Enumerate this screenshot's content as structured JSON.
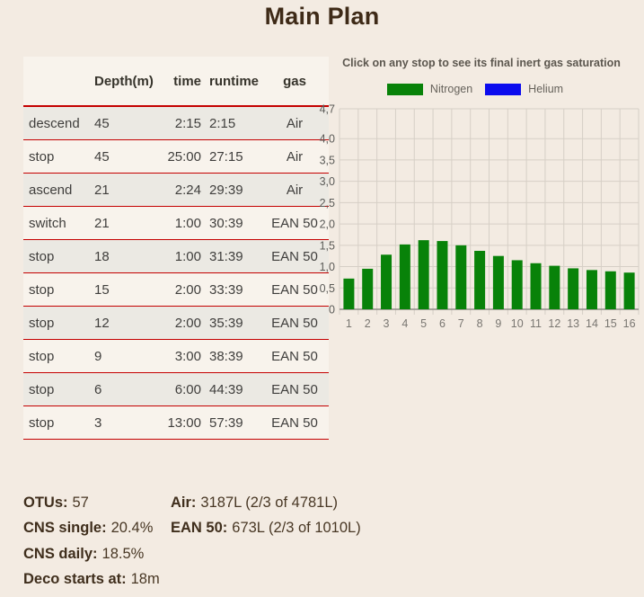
{
  "title": "Main Plan",
  "table": {
    "headers": [
      "",
      "Depth(m)",
      "time",
      "runtime",
      "gas"
    ],
    "rows": [
      [
        "descend",
        "45",
        "2:15",
        "2:15",
        "Air"
      ],
      [
        "stop",
        "45",
        "25:00",
        "27:15",
        "Air"
      ],
      [
        "ascend",
        "21",
        "2:24",
        "29:39",
        "Air"
      ],
      [
        "switch",
        "21",
        "1:00",
        "30:39",
        "EAN 50"
      ],
      [
        "stop",
        "18",
        "1:00",
        "31:39",
        "EAN 50"
      ],
      [
        "stop",
        "15",
        "2:00",
        "33:39",
        "EAN 50"
      ],
      [
        "stop",
        "12",
        "2:00",
        "35:39",
        "EAN 50"
      ],
      [
        "stop",
        "9",
        "3:00",
        "38:39",
        "EAN 50"
      ],
      [
        "stop",
        "6",
        "6:00",
        "44:39",
        "EAN 50"
      ],
      [
        "stop",
        "3",
        "13:00",
        "57:39",
        "EAN 50"
      ]
    ]
  },
  "chart": {
    "hint": "Click on any stop to see its final inert gas saturation",
    "legend": [
      {
        "label": "Nitrogen",
        "color": "#088209"
      },
      {
        "label": "Helium",
        "color": "#0b0bee"
      }
    ]
  },
  "chart_data": {
    "type": "bar",
    "title": "Click on any stop to see its final inert gas saturation",
    "xlabel": "",
    "ylabel": "",
    "categories": [
      "1",
      "2",
      "3",
      "4",
      "5",
      "6",
      "7",
      "8",
      "9",
      "10",
      "11",
      "12",
      "13",
      "14",
      "15",
      "16"
    ],
    "series": [
      {
        "name": "Nitrogen",
        "color": "#088209",
        "values": [
          0.72,
          0.95,
          1.28,
          1.52,
          1.62,
          1.6,
          1.5,
          1.37,
          1.25,
          1.15,
          1.08,
          1.02,
          0.96,
          0.92,
          0.89,
          0.86
        ]
      },
      {
        "name": "Helium",
        "color": "#0b0bee",
        "values": [
          0,
          0,
          0,
          0,
          0,
          0,
          0,
          0,
          0,
          0,
          0,
          0,
          0,
          0,
          0,
          0
        ]
      }
    ],
    "ylim": [
      0,
      4.7
    ],
    "ytick_values": [
      0,
      0.5,
      1.0,
      1.5,
      2.0,
      2.5,
      3.0,
      3.5,
      4.0,
      4.7
    ],
    "ytick_labels": [
      "0",
      "0,5",
      "1,0",
      "1,5",
      "2,0",
      "2,5",
      "3,0",
      "3,5",
      "4,0",
      "4,7"
    ],
    "grid": true,
    "legend_position": "top"
  },
  "stats": {
    "left": [
      {
        "label": "OTUs:",
        "value": "57"
      },
      {
        "label": "CNS single:",
        "value": "20.4%"
      },
      {
        "label": "CNS daily:",
        "value": "18.5%"
      },
      {
        "label": "Deco starts at:",
        "value": "18m"
      }
    ],
    "right": [
      {
        "label": "Air:",
        "value": "3187L (2/3 of 4781L)"
      },
      {
        "label": "EAN 50:",
        "value": "673L (2/3 of 1010L)"
      }
    ]
  },
  "colors": {
    "background": "#f3ebe2",
    "separator_red": "#c40000",
    "nitrogen_green": "#088209",
    "helium_blue": "#0b0bee",
    "row_alt": "#ebe9e3",
    "row_base": "#f8f3ec"
  }
}
